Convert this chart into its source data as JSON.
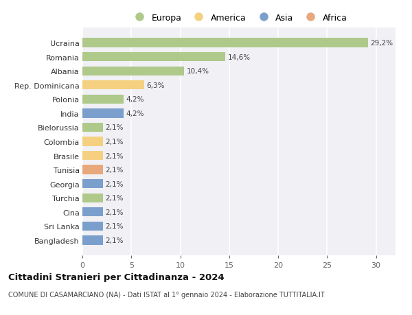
{
  "categories": [
    "Ucraina",
    "Romania",
    "Albania",
    "Rep. Dominicana",
    "Polonia",
    "India",
    "Bielorussia",
    "Colombia",
    "Brasile",
    "Tunisia",
    "Georgia",
    "Turchia",
    "Cina",
    "Sri Lanka",
    "Bangladesh"
  ],
  "values": [
    29.2,
    14.6,
    10.4,
    6.3,
    4.2,
    4.2,
    2.1,
    2.1,
    2.1,
    2.1,
    2.1,
    2.1,
    2.1,
    2.1,
    2.1
  ],
  "labels": [
    "29,2%",
    "14,6%",
    "10,4%",
    "6,3%",
    "4,2%",
    "4,2%",
    "2,1%",
    "2,1%",
    "2,1%",
    "2,1%",
    "2,1%",
    "2,1%",
    "2,1%",
    "2,1%",
    "2,1%"
  ],
  "colors": [
    "#aec98a",
    "#aec98a",
    "#aec98a",
    "#f5d080",
    "#aec98a",
    "#7b9fcc",
    "#aec98a",
    "#f5d080",
    "#f5d080",
    "#e8a87c",
    "#7b9fcc",
    "#aec98a",
    "#7b9fcc",
    "#7b9fcc",
    "#7b9fcc"
  ],
  "legend_labels": [
    "Europa",
    "America",
    "Asia",
    "Africa"
  ],
  "legend_colors": [
    "#aec98a",
    "#f5d080",
    "#7b9fcc",
    "#e8a87c"
  ],
  "title": "Cittadini Stranieri per Cittadinanza - 2024",
  "subtitle": "COMUNE DI CASAMARCIANO (NA) - Dati ISTAT al 1° gennaio 2024 - Elaborazione TUTTITALIA.IT",
  "xlim": [
    0,
    32
  ],
  "xticks": [
    0,
    5,
    10,
    15,
    20,
    25,
    30
  ],
  "bg_color": "#ffffff",
  "plot_bg": "#f0f0f5",
  "grid_color": "#ffffff",
  "bar_height": 0.65
}
